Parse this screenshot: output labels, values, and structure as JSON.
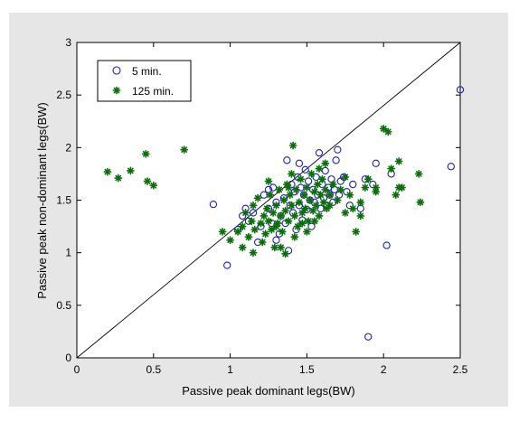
{
  "chart_data": {
    "type": "scatter",
    "title": "",
    "xlabel": "Passive peak dominant legs(BW)",
    "ylabel": "Passive peak non-dominant legs(BW)",
    "xlim": [
      0,
      2.5
    ],
    "ylim": [
      0,
      3
    ],
    "xticks": [
      "0",
      "0.5",
      "1",
      "1.5",
      "2",
      "2.5"
    ],
    "yticks": [
      "0",
      "0.5",
      "1",
      "1.5",
      "2",
      "2.5",
      "3"
    ],
    "grid": false,
    "legend_position": "top-left",
    "reference_line": {
      "from": [
        0,
        0
      ],
      "to": [
        2.5,
        3
      ]
    },
    "series": [
      {
        "name": "5 min.",
        "marker": "open-circle",
        "color": "#1f1fbf",
        "points": [
          [
            0.89,
            1.46
          ],
          [
            0.98,
            0.88
          ],
          [
            1.05,
            1.22
          ],
          [
            1.08,
            1.35
          ],
          [
            1.1,
            1.42
          ],
          [
            1.12,
            1.3
          ],
          [
            1.15,
            1.38
          ],
          [
            1.18,
            1.1
          ],
          [
            1.2,
            1.25
          ],
          [
            1.22,
            1.55
          ],
          [
            1.25,
            1.42
          ],
          [
            1.27,
            1.28
          ],
          [
            1.28,
            1.62
          ],
          [
            1.3,
            1.48
          ],
          [
            1.32,
            1.18
          ],
          [
            1.33,
            1.35
          ],
          [
            1.35,
            1.52
          ],
          [
            1.36,
            1.28
          ],
          [
            1.37,
            1.88
          ],
          [
            1.38,
            1.02
          ],
          [
            1.39,
            1.45
          ],
          [
            1.4,
            1.65
          ],
          [
            1.41,
            1.38
          ],
          [
            1.42,
            1.58
          ],
          [
            1.43,
            1.22
          ],
          [
            1.44,
            1.72
          ],
          [
            1.45,
            1.45
          ],
          [
            1.46,
            1.62
          ],
          [
            1.47,
            1.31
          ],
          [
            1.48,
            1.55
          ],
          [
            1.49,
            1.79
          ],
          [
            1.5,
            1.41
          ],
          [
            1.51,
            1.68
          ],
          [
            1.52,
            1.5
          ],
          [
            1.53,
            1.25
          ],
          [
            1.54,
            1.6
          ],
          [
            1.55,
            1.48
          ],
          [
            1.56,
            1.72
          ],
          [
            1.57,
            1.55
          ],
          [
            1.58,
            1.95
          ],
          [
            1.59,
            1.42
          ],
          [
            1.6,
            1.65
          ],
          [
            1.61,
            1.52
          ],
          [
            1.62,
            1.78
          ],
          [
            1.63,
            1.45
          ],
          [
            1.64,
            1.62
          ],
          [
            1.65,
            1.55
          ],
          [
            1.66,
            1.7
          ],
          [
            1.67,
            1.48
          ],
          [
            1.68,
            1.6
          ],
          [
            1.69,
            1.88
          ],
          [
            1.7,
            1.98
          ],
          [
            1.71,
            1.55
          ],
          [
            1.72,
            1.68
          ],
          [
            1.74,
            1.72
          ],
          [
            1.76,
            1.58
          ],
          [
            1.78,
            1.45
          ],
          [
            1.8,
            1.65
          ],
          [
            1.85,
            1.42
          ],
          [
            1.88,
            1.7
          ],
          [
            1.9,
            0.2
          ],
          [
            1.93,
            1.65
          ],
          [
            1.95,
            1.85
          ],
          [
            2.02,
            1.07
          ],
          [
            2.05,
            1.75
          ],
          [
            2.44,
            1.82
          ],
          [
            2.5,
            2.55
          ],
          [
            1.3,
            1.12
          ],
          [
            1.25,
            1.6
          ],
          [
            1.45,
            1.85
          ]
        ]
      },
      {
        "name": "125 min.",
        "marker": "filled-star",
        "color": "#0a6e0a",
        "points": [
          [
            0.2,
            1.77
          ],
          [
            0.27,
            1.71
          ],
          [
            0.35,
            1.78
          ],
          [
            0.45,
            1.94
          ],
          [
            0.46,
            1.68
          ],
          [
            0.5,
            1.64
          ],
          [
            0.7,
            1.98
          ],
          [
            0.95,
            1.2
          ],
          [
            1.0,
            1.12
          ],
          [
            1.05,
            1.2
          ],
          [
            1.08,
            1.25
          ],
          [
            1.1,
            1.38
          ],
          [
            1.12,
            1.15
          ],
          [
            1.14,
            1.3
          ],
          [
            1.15,
            1.45
          ],
          [
            1.16,
            1.22
          ],
          [
            1.18,
            1.52
          ],
          [
            1.2,
            1.28
          ],
          [
            1.21,
            1.1
          ],
          [
            1.22,
            1.35
          ],
          [
            1.23,
            1.18
          ],
          [
            1.24,
            1.42
          ],
          [
            1.25,
            1.3
          ],
          [
            1.26,
            1.55
          ],
          [
            1.27,
            1.22
          ],
          [
            1.28,
            1.38
          ],
          [
            1.29,
            1.05
          ],
          [
            1.3,
            1.45
          ],
          [
            1.31,
            1.28
          ],
          [
            1.32,
            1.6
          ],
          [
            1.33,
            1.35
          ],
          [
            1.34,
            1.2
          ],
          [
            1.35,
            1.5
          ],
          [
            1.36,
            1.4
          ],
          [
            1.37,
            1.65
          ],
          [
            1.38,
            1.3
          ],
          [
            1.39,
            1.55
          ],
          [
            1.4,
            1.45
          ],
          [
            1.41,
            2.02
          ],
          [
            1.42,
            1.35
          ],
          [
            1.43,
            1.6
          ],
          [
            1.44,
            1.25
          ],
          [
            1.45,
            1.48
          ],
          [
            1.46,
            1.7
          ],
          [
            1.47,
            1.38
          ],
          [
            1.48,
            1.55
          ],
          [
            1.49,
            1.42
          ],
          [
            1.5,
            1.62
          ],
          [
            1.51,
            1.3
          ],
          [
            1.52,
            1.5
          ],
          [
            1.53,
            1.75
          ],
          [
            1.54,
            1.4
          ],
          [
            1.55,
            1.58
          ],
          [
            1.56,
            1.45
          ],
          [
            1.57,
            1.65
          ],
          [
            1.58,
            1.35
          ],
          [
            1.59,
            1.55
          ],
          [
            1.6,
            1.7
          ],
          [
            1.61,
            1.48
          ],
          [
            1.62,
            1.6
          ],
          [
            1.63,
            1.42
          ],
          [
            1.65,
            1.55
          ],
          [
            1.67,
            1.65
          ],
          [
            1.7,
            1.5
          ],
          [
            1.72,
            1.6
          ],
          [
            1.75,
            1.72
          ],
          [
            1.78,
            1.55
          ],
          [
            1.8,
            1.42
          ],
          [
            1.82,
            1.2
          ],
          [
            1.85,
            1.35
          ],
          [
            1.88,
            1.62
          ],
          [
            1.9,
            1.7
          ],
          [
            1.95,
            1.58
          ],
          [
            2.0,
            2.18
          ],
          [
            2.03,
            2.15
          ],
          [
            2.05,
            1.8
          ],
          [
            2.08,
            1.55
          ],
          [
            2.1,
            1.87
          ],
          [
            2.12,
            1.62
          ],
          [
            2.23,
            1.75
          ],
          [
            2.24,
            1.48
          ],
          [
            1.33,
            1.05
          ],
          [
            1.36,
            0.99
          ],
          [
            1.15,
            1.0
          ],
          [
            1.08,
            1.05
          ],
          [
            1.25,
            1.68
          ],
          [
            1.4,
            1.75
          ],
          [
            1.58,
            1.8
          ],
          [
            1.62,
            1.85
          ],
          [
            1.75,
            1.38
          ],
          [
            1.85,
            1.48
          ],
          [
            1.95,
            1.62
          ],
          [
            2.1,
            1.62
          ],
          [
            1.3,
            1.25
          ],
          [
            1.42,
            1.15
          ],
          [
            1.5,
            1.2
          ],
          [
            1.55,
            1.3
          ],
          [
            1.38,
            1.62
          ],
          [
            1.65,
            1.45
          ],
          [
            1.47,
            1.28
          ]
        ]
      }
    ]
  }
}
